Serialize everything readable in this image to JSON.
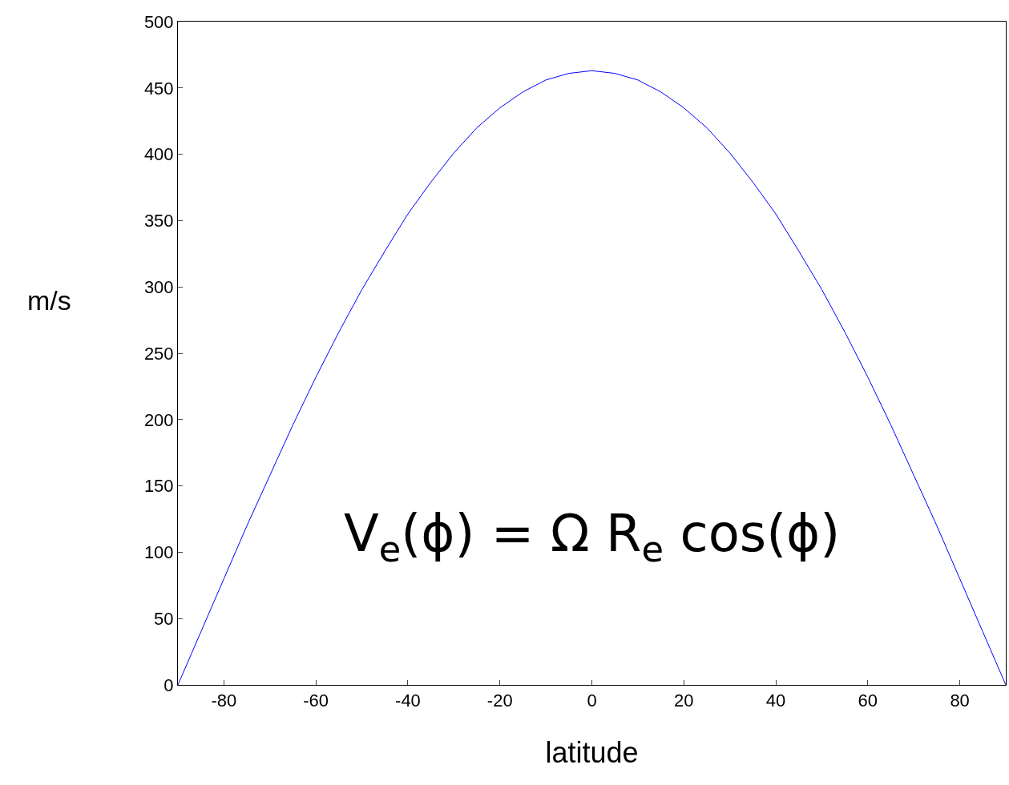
{
  "chart_data": {
    "type": "line",
    "xlabel": "latitude",
    "ylabel": "m/s",
    "x": [
      -90,
      -85,
      -80,
      -75,
      -70,
      -65,
      -60,
      -55,
      -50,
      -45,
      -40,
      -35,
      -30,
      -25,
      -20,
      -15,
      -10,
      -5,
      0,
      5,
      10,
      15,
      20,
      25,
      30,
      35,
      40,
      45,
      50,
      55,
      60,
      65,
      70,
      75,
      80,
      85,
      90
    ],
    "series": [
      {
        "color": "#0000ff",
        "values": [
          0,
          40,
          80,
          120,
          158,
          196,
          232,
          266,
          298,
          327,
          355,
          379,
          401,
          420,
          435,
          447,
          456,
          461,
          463,
          461,
          456,
          447,
          435,
          420,
          401,
          379,
          355,
          327,
          298,
          266,
          232,
          196,
          158,
          120,
          80,
          40,
          0
        ]
      }
    ],
    "xlim": [
      -90,
      90
    ],
    "xticks": [
      -80,
      -60,
      -40,
      -20,
      0,
      20,
      40,
      60,
      80
    ],
    "ylim": [
      0,
      500
    ],
    "yticks": [
      0,
      50,
      100,
      150,
      200,
      250,
      300,
      350,
      400,
      450,
      500
    ],
    "marker": "none",
    "line_style": "solid",
    "annotations": [
      "V$_{e}$(ϕ) = Ω R$_{e}$ cos(ϕ)"
    ]
  }
}
